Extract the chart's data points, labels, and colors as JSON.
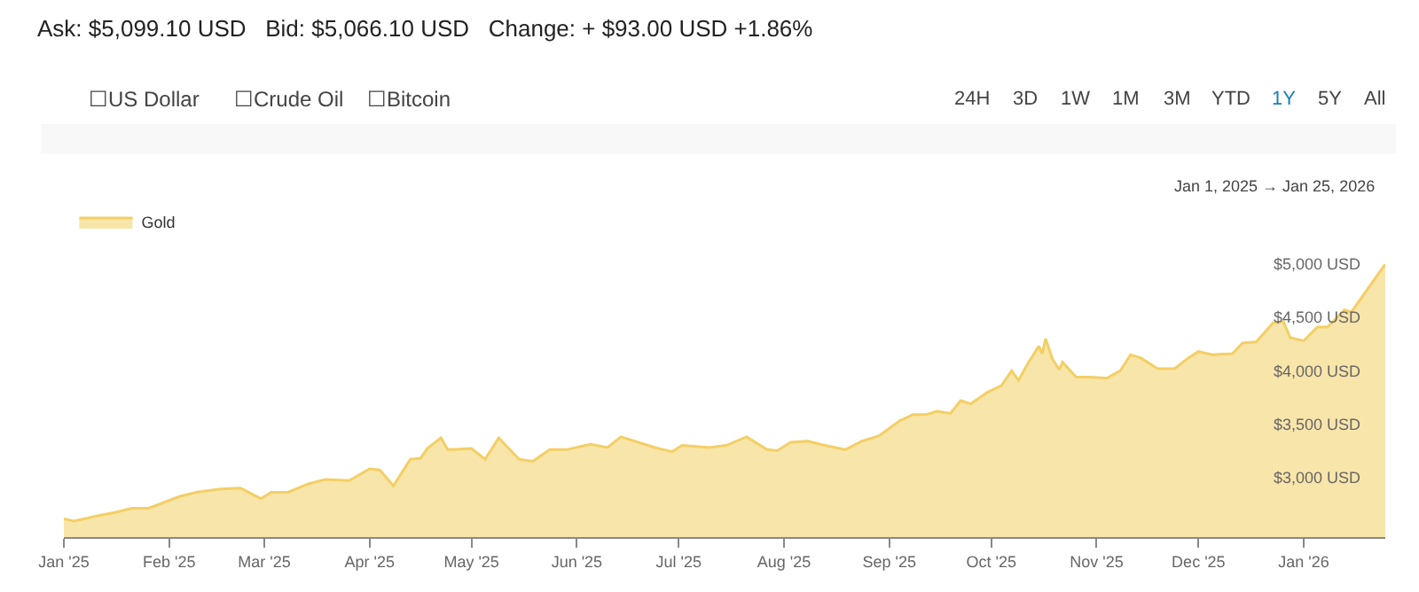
{
  "chart_data": {
    "type": "area",
    "title": "Ask: $5,099.10 USD   Bid: $5,066.10 USD   Change: + $93.00 USD +1.86%",
    "annotations": [
      "☐US Dollar",
      "☐Crude Oil",
      "☐Bitcoin",
      "24H",
      "3D",
      "1W",
      "1M",
      "3M",
      "YTD",
      "1Y",
      "5Y",
      "All",
      "Jan 1, 2025 → Jan 25, 2026"
    ],
    "series": [
      {
        "name": "Gold",
        "color": "#f3cf64",
        "x": [
          "2025-01-01",
          "2025-01-04",
          "2025-01-11",
          "2025-01-16",
          "2025-01-21",
          "2025-01-26",
          "2025-02-04",
          "2025-02-09",
          "2025-02-16",
          "2025-02-22",
          "2025-02-28",
          "2025-03-03",
          "2025-03-08",
          "2025-03-14",
          "2025-03-19",
          "2025-03-26",
          "2025-04-01",
          "2025-04-04",
          "2025-04-08",
          "2025-04-13",
          "2025-04-16",
          "2025-04-18",
          "2025-04-22",
          "2025-04-24",
          "2025-05-01",
          "2025-05-05",
          "2025-05-09",
          "2025-05-15",
          "2025-05-19",
          "2025-05-24",
          "2025-05-29",
          "2025-06-05",
          "2025-06-10",
          "2025-06-14",
          "2025-06-24",
          "2025-06-29",
          "2025-07-02",
          "2025-07-10",
          "2025-07-15",
          "2025-07-21",
          "2025-07-27",
          "2025-07-30",
          "2025-08-03",
          "2025-08-08",
          "2025-08-13",
          "2025-08-19",
          "2025-08-24",
          "2025-08-29",
          "2025-09-04",
          "2025-09-08",
          "2025-09-12",
          "2025-09-15",
          "2025-09-19",
          "2025-09-22",
          "2025-09-25",
          "2025-09-30",
          "2025-10-04",
          "2025-10-07",
          "2025-10-09",
          "2025-10-12",
          "2025-10-15",
          "2025-10-16",
          "2025-10-17",
          "2025-10-19",
          "2025-10-21",
          "2025-10-22",
          "2025-10-26",
          "2025-10-30",
          "2025-11-04",
          "2025-11-08",
          "2025-11-11",
          "2025-11-14",
          "2025-11-19",
          "2025-11-24",
          "2025-11-28",
          "2025-12-01",
          "2025-12-05",
          "2025-12-11",
          "2025-12-14",
          "2025-12-18",
          "2025-12-23",
          "2025-12-26",
          "2025-12-28",
          "2026-01-01",
          "2026-01-05",
          "2026-01-08",
          "2026-01-13",
          "2026-01-15",
          "2026-01-25"
        ],
        "values": [
          2610,
          2590,
          2640,
          2670,
          2710,
          2710,
          2820,
          2860,
          2890,
          2900,
          2800,
          2860,
          2860,
          2940,
          2980,
          2970,
          3080,
          3070,
          2920,
          3170,
          3180,
          3270,
          3370,
          3260,
          3270,
          3170,
          3370,
          3170,
          3150,
          3260,
          3260,
          3310,
          3280,
          3380,
          3280,
          3240,
          3300,
          3280,
          3300,
          3380,
          3260,
          3250,
          3330,
          3340,
          3300,
          3260,
          3340,
          3390,
          3530,
          3590,
          3590,
          3620,
          3600,
          3720,
          3690,
          3800,
          3860,
          4000,
          3910,
          4080,
          4230,
          4160,
          4300,
          4110,
          4010,
          4080,
          3940,
          3940,
          3930,
          4000,
          4150,
          4120,
          4020,
          4020,
          4120,
          4180,
          4150,
          4160,
          4260,
          4270,
          4450,
          4460,
          4310,
          4280,
          4410,
          4410,
          4570,
          4550,
          5000
        ]
      }
    ],
    "xlim": [
      "2025-01-01",
      "2026-01-25"
    ],
    "xticks": [
      {
        "value": "2025-01-01",
        "label": "Jan '25"
      },
      {
        "value": "2025-02-01",
        "label": "Feb '25"
      },
      {
        "value": "2025-03-01",
        "label": "Mar '25"
      },
      {
        "value": "2025-04-01",
        "label": "Apr '25"
      },
      {
        "value": "2025-05-01",
        "label": "May '25"
      },
      {
        "value": "2025-06-01",
        "label": "Jun '25"
      },
      {
        "value": "2025-07-01",
        "label": "Jul '25"
      },
      {
        "value": "2025-08-01",
        "label": "Aug '25"
      },
      {
        "value": "2025-09-01",
        "label": "Sep '25"
      },
      {
        "value": "2025-10-01",
        "label": "Oct '25"
      },
      {
        "value": "2025-11-01",
        "label": "Nov '25"
      },
      {
        "value": "2025-12-01",
        "label": "Dec '25"
      },
      {
        "value": "2026-01-01",
        "label": "Jan '26"
      }
    ],
    "ylim": [
      2440,
      5000
    ],
    "yticks": [
      {
        "value": 3000,
        "label": "$3,000 USD"
      },
      {
        "value": 3500,
        "label": "$3,500 USD"
      },
      {
        "value": 4000,
        "label": "$4,000 USD"
      },
      {
        "value": 4500,
        "label": "$4,500 USD"
      },
      {
        "value": 5000,
        "label": "$5,000 USD"
      }
    ],
    "legend": "top left",
    "marker": "none",
    "line_style": "solid"
  }
}
